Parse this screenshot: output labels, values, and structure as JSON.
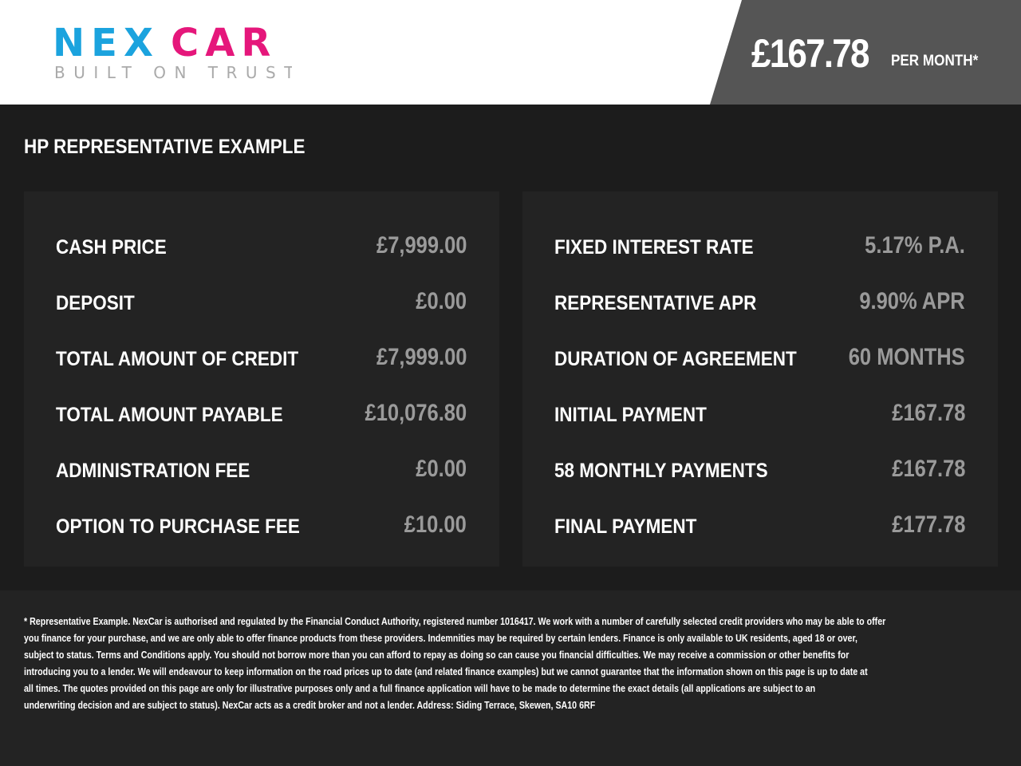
{
  "header": {
    "logo_text": "NEXCAR",
    "logo_tagline": "BUILT ON TRUST",
    "price": "£167.78",
    "per_month": "PER MONTH*"
  },
  "colors": {
    "brand_blue": "#1ba3de",
    "brand_pink": "#e5177b",
    "value_gray": "#9a9a9a"
  },
  "section_title": "HP REPRESENTATIVE EXAMPLE",
  "left": [
    {
      "label": "CASH PRICE",
      "value": "£7,999.00"
    },
    {
      "label": "DEPOSIT",
      "value": "£0.00"
    },
    {
      "label": "TOTAL AMOUNT OF CREDIT",
      "value": "£7,999.00"
    },
    {
      "label": "TOTAL AMOUNT PAYABLE",
      "value": "£10,076.80"
    },
    {
      "label": "ADMINISTRATION FEE",
      "value": "£0.00"
    },
    {
      "label": "OPTION TO PURCHASE FEE",
      "value": "£10.00"
    }
  ],
  "right": [
    {
      "label": "FIXED INTEREST RATE",
      "value": "5.17% P.A."
    },
    {
      "label": "REPRESENTATIVE APR",
      "value": "9.90% APR"
    },
    {
      "label": "DURATION OF AGREEMENT",
      "value": "60 MONTHS"
    },
    {
      "label": "INITIAL PAYMENT",
      "value": "£167.78"
    },
    {
      "label": "58 MONTHLY PAYMENTS",
      "value": "£167.78"
    },
    {
      "label": "FINAL PAYMENT",
      "value": "£177.78"
    }
  ],
  "disclaimer": [
    "* Representative Example. NexCar is authorised and regulated by the Financial Conduct Authority, registered number 1016417. We work with a number of carefully selected credit providers who may be able to offer",
    "you finance for your purchase, and we are only able to offer finance products from these providers. Indemnities may be required by certain lenders. Finance is only available to UK residents, aged 18 or over,",
    "subject to status. Terms and Conditions apply. You should not borrow more than you can afford to repay as doing so can cause you financial difficulties. We may receive a commission or other benefits for",
    "introducing you to a lender. We will endeavour to keep information on the road prices up to date (and related finance examples) but we cannot guarantee that the information shown on this page is up to date at",
    "all times. The quotes provided on this page are only for illustrative purposes only and a full finance application will have to be made to determine the exact details (all applications are subject to an",
    "underwriting decision and are subject to status). NexCar acts as a credit broker and not a lender. Address: Siding Terrace, Skewen, SA10 6RF"
  ]
}
